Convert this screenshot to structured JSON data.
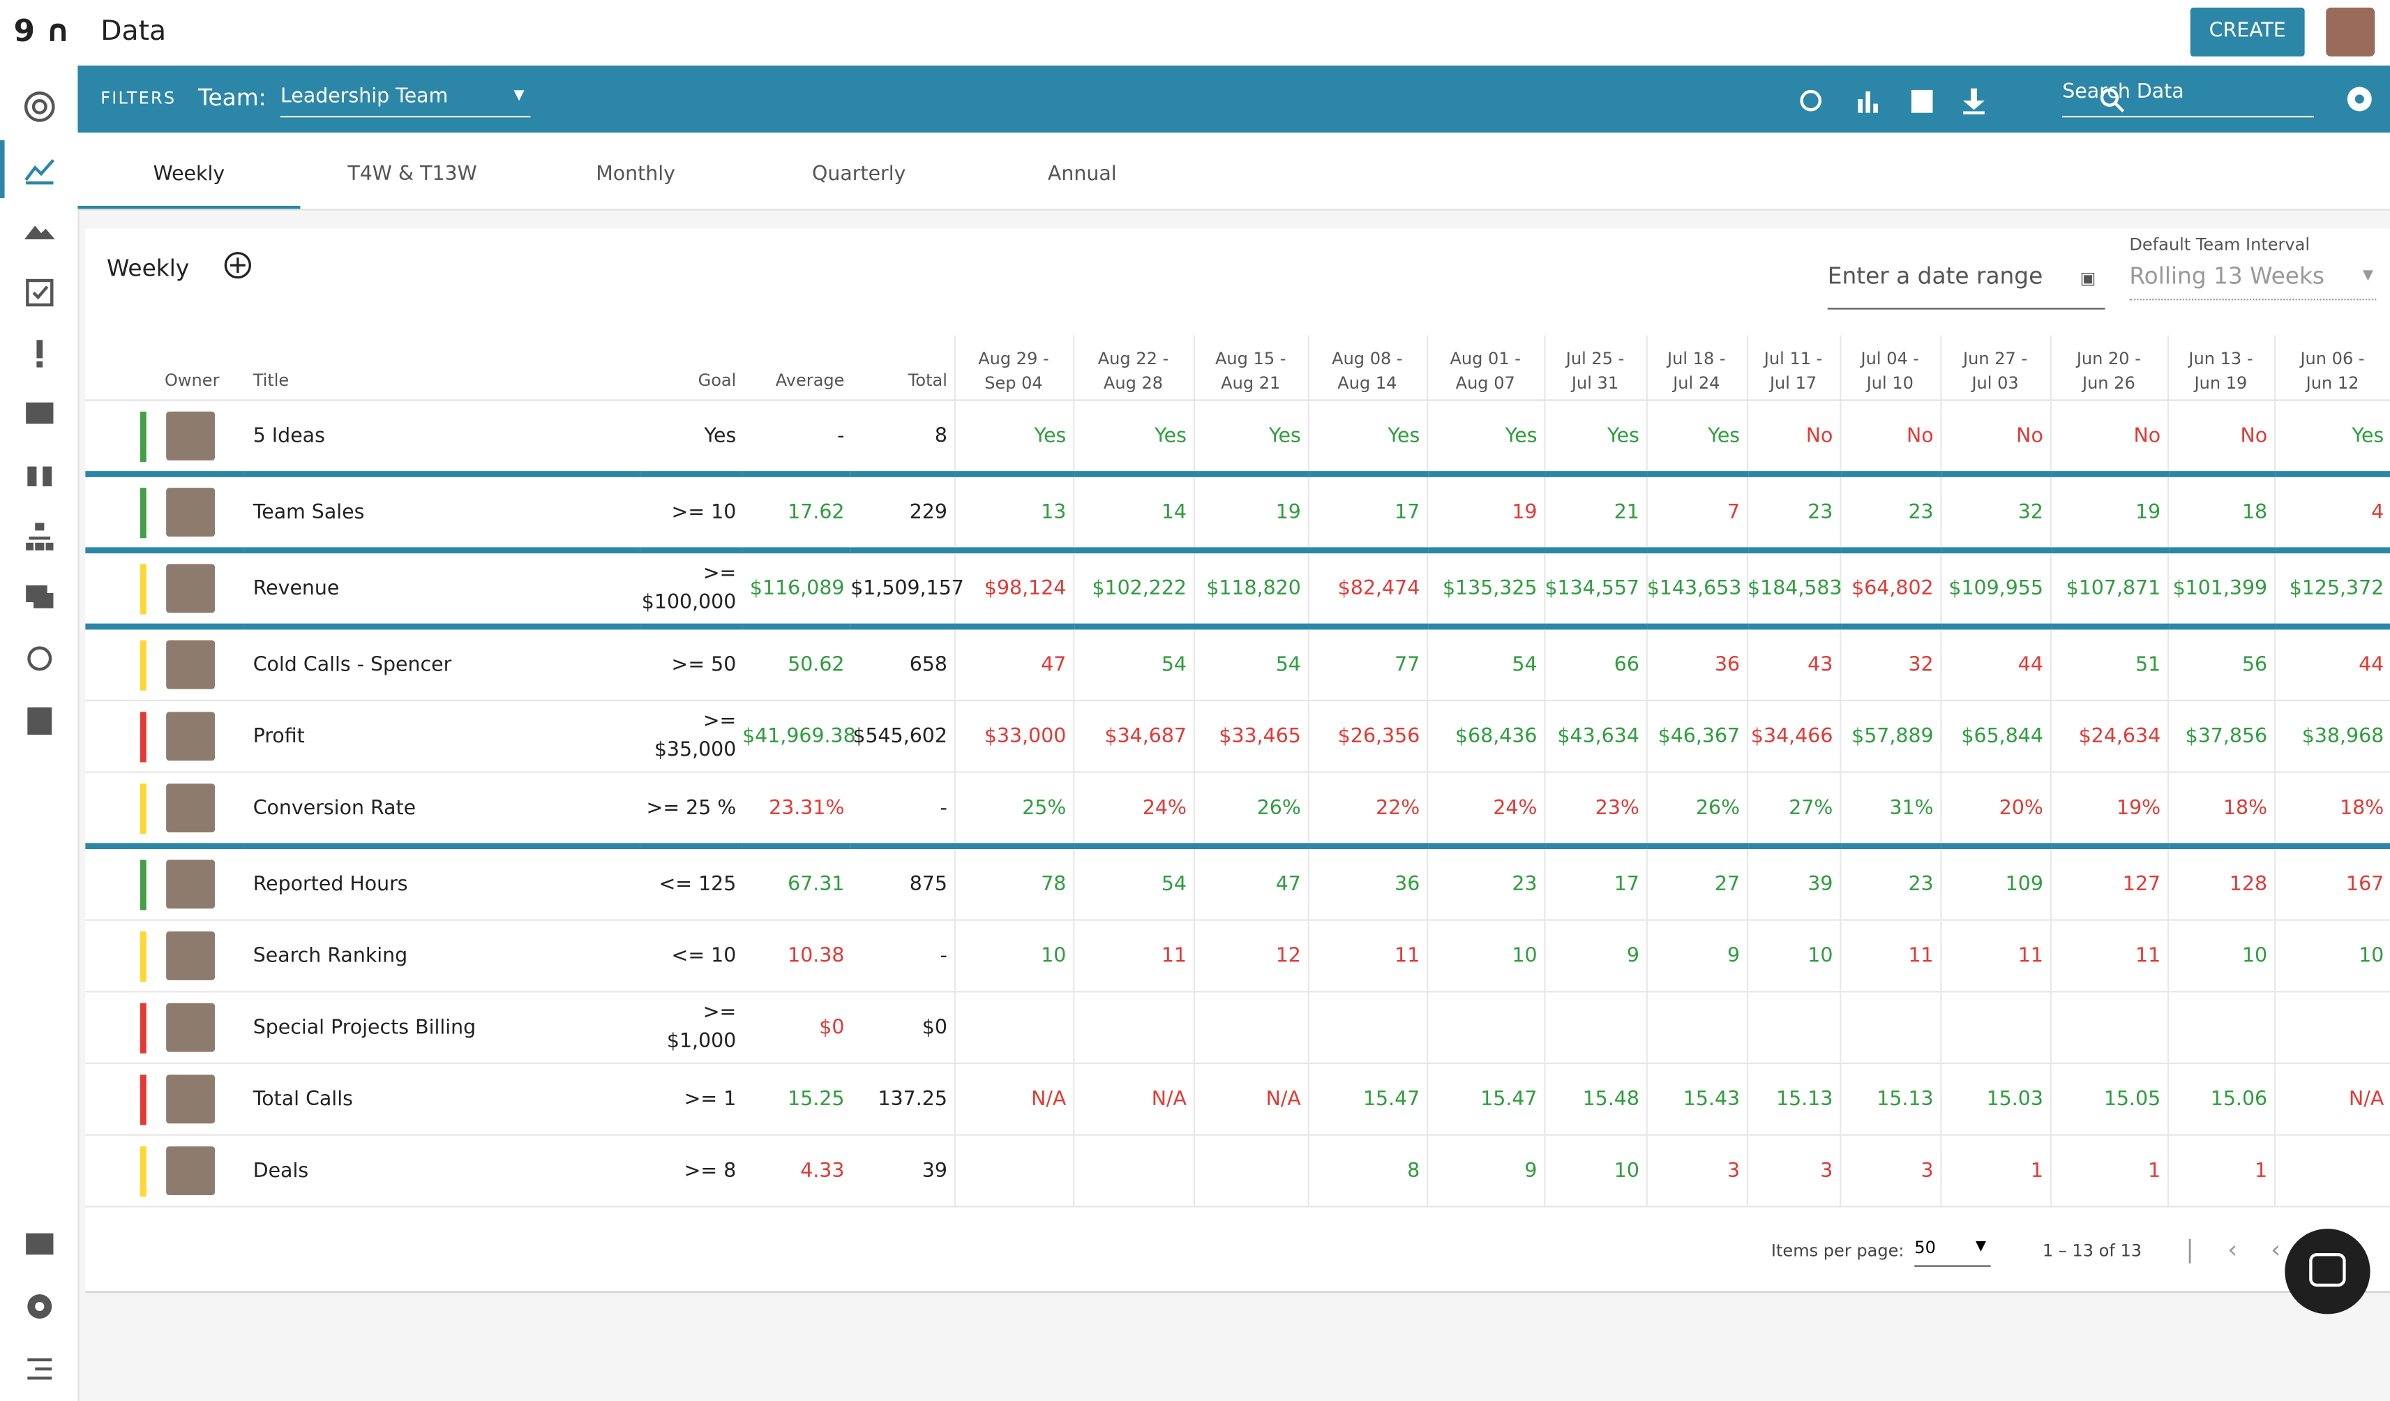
{
  "app": {
    "title": "Data",
    "create": "CREATE"
  },
  "filters": {
    "label": "FILTERS",
    "team_label": "Team:",
    "team": "Leadership Team",
    "search": "Search Data"
  },
  "tabs": [
    "Weekly",
    "T4W & T13W",
    "Monthly",
    "Quarterly",
    "Annual"
  ],
  "panel": {
    "title": "Weekly",
    "date_placeholder": "Enter a date range",
    "interval_label": "Default Team Interval",
    "interval": "Rolling 13 Weeks"
  },
  "colors": {
    "good": "#2e9e3e",
    "bad": "#e53935",
    "status": {
      "green": "#43a047",
      "yellow": "#fdd835",
      "red": "#e53935"
    }
  },
  "table": {
    "columns": {
      "owner": "Owner",
      "title": "Title",
      "goal": "Goal",
      "average": "Average",
      "total": "Total"
    },
    "weeks": [
      [
        "Aug 29 -",
        "Sep 04"
      ],
      [
        "Aug 22 -",
        "Aug 28"
      ],
      [
        "Aug 15 -",
        "Aug 21"
      ],
      [
        "Aug 08 -",
        "Aug 14"
      ],
      [
        "Aug 01 -",
        "Aug 07"
      ],
      [
        "Jul 25 -",
        "Jul 31"
      ],
      [
        "Jul 18 -",
        "Jul 24"
      ],
      [
        "Jul 11 -",
        "Jul 17"
      ],
      [
        "Jul 04 -",
        "Jul 10"
      ],
      [
        "Jun 27 -",
        "Jul 03"
      ],
      [
        "Jun 20 -",
        "Jun 26"
      ],
      [
        "Jun 13 -",
        "Jun 19"
      ],
      [
        "Jun 06 -",
        "Jun 12"
      ]
    ],
    "rows": [
      {
        "title": "5 Ideas",
        "status": "green",
        "goal": "Yes",
        "average": "-",
        "total": "8",
        "divider": true,
        "cells": [
          [
            "Yes",
            "good"
          ],
          [
            "Yes",
            "good"
          ],
          [
            "Yes",
            "good"
          ],
          [
            "Yes",
            "good"
          ],
          [
            "Yes",
            "good"
          ],
          [
            "Yes",
            "good"
          ],
          [
            "Yes",
            "good"
          ],
          [
            "No",
            "bad"
          ],
          [
            "No",
            "bad"
          ],
          [
            "No",
            "bad"
          ],
          [
            "No",
            "bad"
          ],
          [
            "No",
            "bad"
          ],
          [
            "Yes",
            "good"
          ]
        ]
      },
      {
        "title": "Team Sales",
        "status": "green",
        "goal": ">= 10",
        "average": "17.62",
        "average_state": "good",
        "total": "229",
        "divider": true,
        "cells": [
          [
            "13",
            "good"
          ],
          [
            "14",
            "good"
          ],
          [
            "19",
            "good"
          ],
          [
            "17",
            "good"
          ],
          [
            "19",
            "bad"
          ],
          [
            "21",
            "good"
          ],
          [
            "7",
            "bad"
          ],
          [
            "23",
            "good"
          ],
          [
            "23",
            "good"
          ],
          [
            "32",
            "good"
          ],
          [
            "19",
            "good"
          ],
          [
            "18",
            "good"
          ],
          [
            "4",
            "bad"
          ]
        ]
      },
      {
        "title": "Revenue",
        "status": "yellow",
        "goal": ">= $100,000",
        "average": "$116,089",
        "average_state": "good",
        "total": "$1,509,157",
        "divider": true,
        "cells": [
          [
            "$98,124",
            "bad"
          ],
          [
            "$102,222",
            "good"
          ],
          [
            "$118,820",
            "good"
          ],
          [
            "$82,474",
            "bad"
          ],
          [
            "$135,325",
            "good"
          ],
          [
            "$134,557",
            "good"
          ],
          [
            "$143,653",
            "good"
          ],
          [
            "$184,583",
            "good"
          ],
          [
            "$64,802",
            "bad"
          ],
          [
            "$109,955",
            "good"
          ],
          [
            "$107,871",
            "good"
          ],
          [
            "$101,399",
            "good"
          ],
          [
            "$125,372",
            "good"
          ]
        ]
      },
      {
        "title": "Cold Calls - Spencer",
        "status": "yellow",
        "goal": ">= 50",
        "average": "50.62",
        "average_state": "good",
        "total": "658",
        "cells": [
          [
            "47",
            "bad"
          ],
          [
            "54",
            "good"
          ],
          [
            "54",
            "good"
          ],
          [
            "77",
            "good"
          ],
          [
            "54",
            "good"
          ],
          [
            "66",
            "good"
          ],
          [
            "36",
            "bad"
          ],
          [
            "43",
            "bad"
          ],
          [
            "32",
            "bad"
          ],
          [
            "44",
            "bad"
          ],
          [
            "51",
            "good"
          ],
          [
            "56",
            "good"
          ],
          [
            "44",
            "bad"
          ]
        ]
      },
      {
        "title": "Profit",
        "status": "red",
        "goal": ">= $35,000",
        "average": "$41,969.38",
        "average_state": "good",
        "total": "$545,602",
        "cells": [
          [
            "$33,000",
            "bad"
          ],
          [
            "$34,687",
            "bad"
          ],
          [
            "$33,465",
            "bad"
          ],
          [
            "$26,356",
            "bad"
          ],
          [
            "$68,436",
            "good"
          ],
          [
            "$43,634",
            "good"
          ],
          [
            "$46,367",
            "good"
          ],
          [
            "$34,466",
            "bad"
          ],
          [
            "$57,889",
            "good"
          ],
          [
            "$65,844",
            "good"
          ],
          [
            "$24,634",
            "bad"
          ],
          [
            "$37,856",
            "good"
          ],
          [
            "$38,968",
            "good"
          ]
        ]
      },
      {
        "title": "Conversion Rate",
        "status": "yellow",
        "goal": ">= 25 %",
        "average": "23.31%",
        "average_state": "bad",
        "total": "-",
        "divider": true,
        "cells": [
          [
            "25%",
            "good"
          ],
          [
            "24%",
            "bad"
          ],
          [
            "26%",
            "good"
          ],
          [
            "22%",
            "bad"
          ],
          [
            "24%",
            "bad"
          ],
          [
            "23%",
            "bad"
          ],
          [
            "26%",
            "good"
          ],
          [
            "27%",
            "good"
          ],
          [
            "31%",
            "good"
          ],
          [
            "20%",
            "bad"
          ],
          [
            "19%",
            "bad"
          ],
          [
            "18%",
            "bad"
          ],
          [
            "18%",
            "bad"
          ]
        ]
      },
      {
        "title": "Reported Hours",
        "status": "green",
        "goal": "<= 125",
        "average": "67.31",
        "average_state": "good",
        "total": "875",
        "cells": [
          [
            "78",
            "good"
          ],
          [
            "54",
            "good"
          ],
          [
            "47",
            "good"
          ],
          [
            "36",
            "good"
          ],
          [
            "23",
            "good"
          ],
          [
            "17",
            "good"
          ],
          [
            "27",
            "good"
          ],
          [
            "39",
            "good"
          ],
          [
            "23",
            "good"
          ],
          [
            "109",
            "good"
          ],
          [
            "127",
            "bad"
          ],
          [
            "128",
            "bad"
          ],
          [
            "167",
            "bad"
          ]
        ]
      },
      {
        "title": "Search Ranking",
        "status": "yellow",
        "goal": "<= 10",
        "average": "10.38",
        "average_state": "bad",
        "total": "-",
        "cells": [
          [
            "10",
            "good"
          ],
          [
            "11",
            "bad"
          ],
          [
            "12",
            "bad"
          ],
          [
            "11",
            "bad"
          ],
          [
            "10",
            "good"
          ],
          [
            "9",
            "good"
          ],
          [
            "9",
            "good"
          ],
          [
            "10",
            "good"
          ],
          [
            "11",
            "bad"
          ],
          [
            "11",
            "bad"
          ],
          [
            "11",
            "bad"
          ],
          [
            "10",
            "good"
          ],
          [
            "10",
            "good"
          ]
        ]
      },
      {
        "title": "Special Projects Billing",
        "status": "red",
        "goal": ">= $1,000",
        "average": "$0",
        "average_state": "bad",
        "total": "$0",
        "cells": [
          null,
          null,
          null,
          null,
          null,
          null,
          null,
          null,
          null,
          null,
          null,
          null,
          null
        ]
      },
      {
        "title": "Total Calls",
        "status": "red",
        "goal": ">= 1",
        "average": "15.25",
        "average_state": "good",
        "total": "137.25",
        "cells": [
          [
            "N/A",
            "bad"
          ],
          [
            "N/A",
            "bad"
          ],
          [
            "N/A",
            "bad"
          ],
          [
            "15.47",
            "good"
          ],
          [
            "15.47",
            "good"
          ],
          [
            "15.48",
            "good"
          ],
          [
            "15.43",
            "good"
          ],
          [
            "15.13",
            "good"
          ],
          [
            "15.13",
            "good"
          ],
          [
            "15.03",
            "good"
          ],
          [
            "15.05",
            "good"
          ],
          [
            "15.06",
            "good"
          ],
          [
            "N/A",
            "bad"
          ]
        ]
      },
      {
        "title": "Deals",
        "status": "yellow",
        "goal": ">= 8",
        "average": "4.33",
        "average_state": "bad",
        "total": "39",
        "cells": [
          null,
          null,
          null,
          [
            "8",
            "good"
          ],
          [
            "9",
            "good"
          ],
          [
            "10",
            "good"
          ],
          [
            "3",
            "bad"
          ],
          [
            "3",
            "bad"
          ],
          [
            "3",
            "bad"
          ],
          [
            "1",
            "bad"
          ],
          [
            "1",
            "bad"
          ],
          [
            "1",
            "bad"
          ],
          null
        ]
      }
    ]
  },
  "pagination": {
    "label": "Items per page:",
    "size": "50",
    "range": "1 – 13 of 13"
  }
}
